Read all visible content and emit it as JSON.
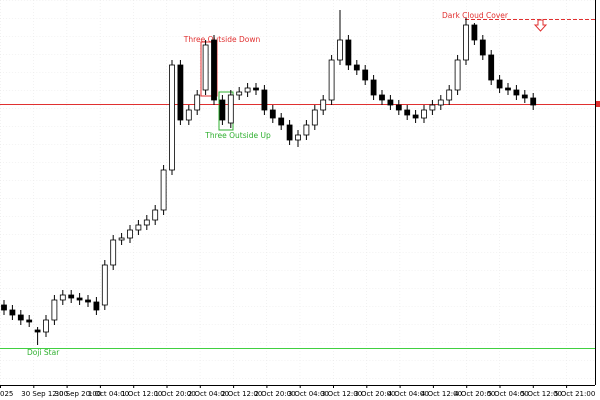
{
  "chart_data": {
    "type": "candlestick",
    "ylim": [
      0,
      385
    ],
    "up_color": "#ffffff",
    "down_color": "#000000",
    "wick_color": "#000000",
    "open": [
      80,
      75,
      70,
      65,
      55,
      53,
      65,
      85,
      90,
      87,
      85,
      83,
      80,
      120,
      145,
      147,
      155,
      160,
      165,
      175,
      215,
      320,
      265,
      275,
      295,
      345,
      285,
      262,
      290,
      293,
      297,
      295,
      275,
      267,
      260,
      245,
      250,
      260,
      275,
      285,
      325,
      345,
      320,
      315,
      305,
      290,
      285,
      280,
      275,
      270,
      267,
      275,
      280,
      285,
      295,
      325,
      360,
      345,
      330,
      305,
      297,
      295,
      290,
      287
    ],
    "high": [
      85,
      80,
      75,
      70,
      58,
      70,
      90,
      95,
      95,
      92,
      90,
      88,
      125,
      150,
      152,
      160,
      165,
      170,
      180,
      220,
      325,
      325,
      280,
      295,
      345,
      350,
      290,
      295,
      298,
      302,
      302,
      300,
      280,
      272,
      265,
      255,
      265,
      280,
      290,
      330,
      375,
      350,
      325,
      320,
      310,
      295,
      290,
      285,
      280,
      275,
      280,
      285,
      290,
      300,
      330,
      367,
      362,
      350,
      335,
      310,
      302,
      300,
      295,
      292
    ],
    "low": [
      70,
      65,
      60,
      58,
      40,
      48,
      60,
      80,
      82,
      80,
      78,
      70,
      75,
      115,
      140,
      142,
      150,
      155,
      160,
      170,
      210,
      260,
      260,
      270,
      290,
      280,
      260,
      257,
      285,
      288,
      290,
      270,
      262,
      255,
      240,
      238,
      245,
      255,
      270,
      280,
      320,
      315,
      310,
      300,
      285,
      280,
      275,
      270,
      265,
      262,
      262,
      270,
      275,
      280,
      290,
      320,
      340,
      325,
      300,
      292,
      290,
      285,
      282,
      275
    ],
    "close": [
      75,
      70,
      65,
      63,
      53,
      65,
      85,
      90,
      87,
      85,
      83,
      75,
      120,
      145,
      147,
      155,
      160,
      165,
      175,
      215,
      320,
      265,
      275,
      290,
      340,
      285,
      265,
      290,
      293,
      297,
      295,
      275,
      267,
      260,
      245,
      250,
      260,
      275,
      285,
      325,
      345,
      320,
      315,
      305,
      290,
      285,
      280,
      275,
      270,
      267,
      275,
      280,
      285,
      295,
      325,
      360,
      345,
      330,
      305,
      297,
      295,
      290,
      287,
      280
    ],
    "hlines": [
      {
        "value": 281,
        "color": "#e03030"
      },
      {
        "value": 37,
        "color": "#40d040"
      },
      {
        "value": 366,
        "color": "#e03030",
        "dashed": true
      }
    ],
    "annotations": [
      {
        "text": "Three Outside Down",
        "color": "#e03030"
      },
      {
        "text": "Three Outside Up",
        "color": "#30b030"
      },
      {
        "text": "Doji Star",
        "color": "#30b030"
      },
      {
        "text": "Dark Cloud Cover",
        "color": "#e03030"
      }
    ],
    "xtick_labels": [
      "025",
      "30 Sep 12:00",
      "30 Sep 20:00",
      "1 Oct 04:00",
      "1 Oct 12:00",
      "1 Oct 20:00",
      "2 Oct 04:00",
      "2 Oct 12:00",
      "2 Oct 20:00",
      "3 Oct 04:00",
      "3 Oct 12:00",
      "3 Oct 20:00",
      "4 Oct 04:00",
      "4 Oct 12:00",
      "4 Oct 20:00",
      "5 Oct 04:00",
      "5 Oct 12:00",
      "5 Oct 21:00"
    ]
  }
}
